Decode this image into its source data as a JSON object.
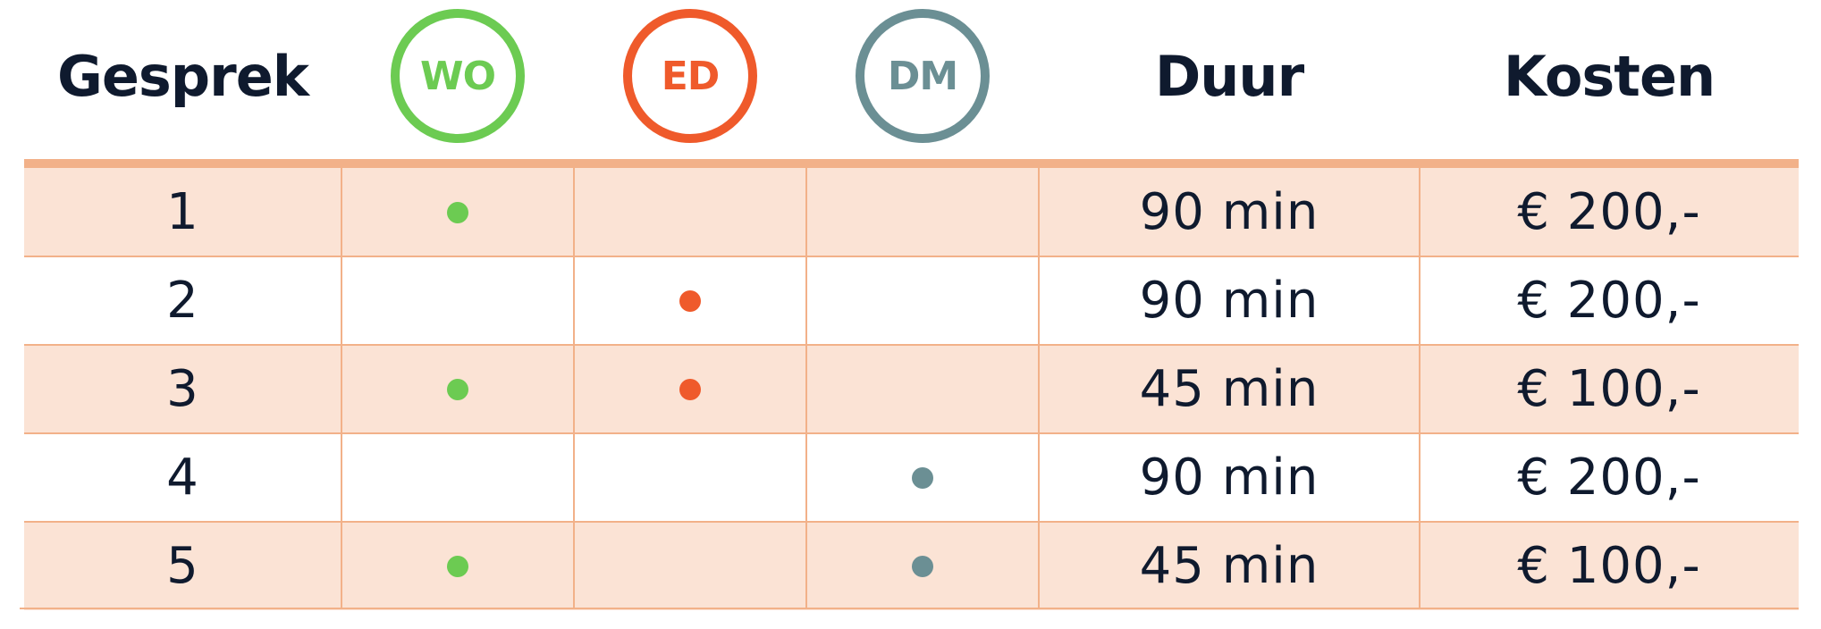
{
  "header": {
    "gesprek": "Gesprek",
    "wo": "WO",
    "ed": "ED",
    "dm": "DM",
    "duur": "Duur",
    "kosten": "Kosten"
  },
  "colors": {
    "wo": "#6ccb52",
    "ed": "#ef5a2b",
    "dm": "#6b8f94",
    "rule": "#f2b189",
    "shade": "#fbe3d5",
    "text": "#0f1a2e"
  },
  "rows": [
    {
      "gesprek": "1",
      "wo": true,
      "ed": false,
      "dm": false,
      "duur": "90 min",
      "kosten": "€ 200,-"
    },
    {
      "gesprek": "2",
      "wo": false,
      "ed": true,
      "dm": false,
      "duur": "90 min",
      "kosten": "€ 200,-"
    },
    {
      "gesprek": "3",
      "wo": true,
      "ed": true,
      "dm": false,
      "duur": "45 min",
      "kosten": "€ 100,-"
    },
    {
      "gesprek": "4",
      "wo": false,
      "ed": false,
      "dm": true,
      "duur": "90 min",
      "kosten": "€ 200,-"
    },
    {
      "gesprek": "5",
      "wo": true,
      "ed": false,
      "dm": true,
      "duur": "45 min",
      "kosten": "€ 100,-"
    }
  ]
}
